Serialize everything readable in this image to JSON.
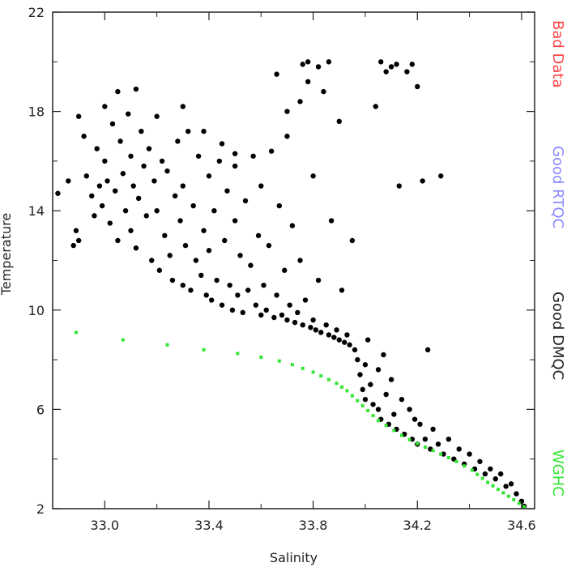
{
  "chart_data": {
    "type": "scatter",
    "xlabel": "Salinity",
    "ylabel": "Temperature",
    "xlim": [
      32.8,
      34.65
    ],
    "ylim": [
      2,
      22
    ],
    "x_ticks": [
      33.0,
      33.4,
      33.8,
      34.2,
      34.6
    ],
    "x_tick_labels": [
      "33.0",
      "33.4",
      "33.8",
      "34.2",
      "34.6"
    ],
    "y_ticks": [
      2,
      6,
      10,
      14,
      18,
      22
    ],
    "y_tick_labels": [
      "2",
      "6",
      "10",
      "14",
      "18",
      "22"
    ],
    "grid": false,
    "legend_placement": "right-vertical",
    "legend": [
      {
        "label": "Bad Data",
        "color": "#ff4444"
      },
      {
        "label": "Good RTQC",
        "color": "#8a8aff"
      },
      {
        "label": "Good DMQC",
        "color": "#222222"
      },
      {
        "label": "WGHC",
        "color": "#33e633"
      }
    ],
    "series": [
      {
        "name": "Good DMQC",
        "color": "#000000",
        "marker": "circle",
        "points": [
          [
            32.82,
            14.7
          ],
          [
            32.86,
            15.2
          ],
          [
            32.88,
            12.6
          ],
          [
            32.89,
            13.2
          ],
          [
            32.9,
            12.8
          ],
          [
            32.9,
            17.8
          ],
          [
            32.92,
            17.0
          ],
          [
            32.93,
            15.4
          ],
          [
            32.95,
            14.6
          ],
          [
            32.96,
            13.8
          ],
          [
            32.97,
            16.5
          ],
          [
            32.98,
            15.0
          ],
          [
            32.99,
            14.2
          ],
          [
            33.0,
            18.2
          ],
          [
            33.0,
            16.0
          ],
          [
            33.01,
            15.2
          ],
          [
            33.02,
            13.5
          ],
          [
            33.03,
            17.5
          ],
          [
            33.04,
            14.8
          ],
          [
            33.05,
            18.8
          ],
          [
            33.05,
            12.8
          ],
          [
            33.06,
            16.8
          ],
          [
            33.07,
            15.5
          ],
          [
            33.08,
            14.0
          ],
          [
            33.09,
            17.9
          ],
          [
            33.1,
            13.2
          ],
          [
            33.1,
            16.2
          ],
          [
            33.11,
            15.0
          ],
          [
            33.12,
            18.9
          ],
          [
            33.12,
            12.5
          ],
          [
            33.13,
            14.5
          ],
          [
            33.14,
            17.2
          ],
          [
            33.15,
            15.8
          ],
          [
            33.16,
            13.8
          ],
          [
            33.17,
            16.5
          ],
          [
            33.18,
            12.0
          ],
          [
            33.19,
            15.2
          ],
          [
            33.2,
            17.8
          ],
          [
            33.2,
            14.0
          ],
          [
            33.21,
            11.6
          ],
          [
            33.22,
            16.0
          ],
          [
            33.23,
            13.0
          ],
          [
            33.24,
            15.6
          ],
          [
            33.25,
            12.2
          ],
          [
            33.26,
            11.2
          ],
          [
            33.27,
            14.6
          ],
          [
            33.28,
            16.8
          ],
          [
            33.29,
            13.6
          ],
          [
            33.3,
            11.0
          ],
          [
            33.3,
            15.0
          ],
          [
            33.31,
            12.6
          ],
          [
            33.32,
            17.2
          ],
          [
            33.33,
            10.8
          ],
          [
            33.34,
            14.2
          ],
          [
            33.35,
            12.0
          ],
          [
            33.36,
            16.2
          ],
          [
            33.37,
            11.4
          ],
          [
            33.38,
            13.2
          ],
          [
            33.39,
            10.6
          ],
          [
            33.4,
            15.4
          ],
          [
            33.4,
            12.4
          ],
          [
            33.41,
            10.4
          ],
          [
            33.42,
            14.0
          ],
          [
            33.43,
            11.2
          ],
          [
            33.44,
            16.0
          ],
          [
            33.45,
            10.2
          ],
          [
            33.46,
            12.8
          ],
          [
            33.47,
            14.8
          ],
          [
            33.48,
            11.0
          ],
          [
            33.49,
            10.0
          ],
          [
            33.5,
            13.6
          ],
          [
            33.5,
            15.8
          ],
          [
            33.51,
            10.6
          ],
          [
            33.52,
            12.2
          ],
          [
            33.53,
            9.9
          ],
          [
            33.54,
            14.4
          ],
          [
            33.55,
            10.8
          ],
          [
            33.56,
            11.8
          ],
          [
            33.57,
            16.2
          ],
          [
            33.58,
            10.2
          ],
          [
            33.59,
            13.0
          ],
          [
            33.6,
            9.8
          ],
          [
            33.6,
            15.0
          ],
          [
            33.61,
            11.0
          ],
          [
            33.62,
            10.0
          ],
          [
            33.63,
            12.6
          ],
          [
            33.64,
            16.4
          ],
          [
            33.65,
            9.7
          ],
          [
            33.66,
            10.6
          ],
          [
            33.67,
            14.2
          ],
          [
            33.68,
            9.8
          ],
          [
            33.69,
            11.6
          ],
          [
            33.7,
            9.6
          ],
          [
            33.7,
            17.0
          ],
          [
            33.71,
            10.2
          ],
          [
            33.72,
            13.4
          ],
          [
            33.73,
            9.5
          ],
          [
            33.74,
            9.9
          ],
          [
            33.75,
            18.4
          ],
          [
            33.75,
            12.0
          ],
          [
            33.76,
            9.4
          ],
          [
            33.77,
            10.4
          ],
          [
            33.78,
            19.2
          ],
          [
            33.79,
            9.3
          ],
          [
            33.8,
            15.4
          ],
          [
            33.8,
            9.6
          ],
          [
            33.81,
            9.2
          ],
          [
            33.82,
            11.2
          ],
          [
            33.83,
            9.1
          ],
          [
            33.84,
            18.8
          ],
          [
            33.85,
            9.4
          ],
          [
            33.86,
            9.0
          ],
          [
            33.87,
            13.6
          ],
          [
            33.88,
            8.9
          ],
          [
            33.89,
            9.2
          ],
          [
            33.9,
            17.6
          ],
          [
            33.9,
            8.8
          ],
          [
            33.91,
            10.8
          ],
          [
            33.92,
            8.7
          ],
          [
            33.93,
            9.0
          ],
          [
            33.94,
            8.6
          ],
          [
            33.95,
            12.8
          ],
          [
            33.96,
            8.4
          ],
          [
            33.97,
            8.0
          ],
          [
            33.98,
            7.4
          ],
          [
            33.99,
            6.8
          ],
          [
            34.0,
            7.8
          ],
          [
            34.0,
            6.4
          ],
          [
            34.01,
            8.8
          ],
          [
            34.02,
            7.0
          ],
          [
            34.03,
            6.2
          ],
          [
            34.04,
            18.2
          ],
          [
            34.05,
            7.6
          ],
          [
            34.05,
            6.0
          ],
          [
            34.06,
            5.6
          ],
          [
            34.07,
            8.2
          ],
          [
            34.08,
            6.6
          ],
          [
            34.09,
            5.4
          ],
          [
            34.1,
            19.8
          ],
          [
            34.1,
            7.2
          ],
          [
            34.11,
            5.8
          ],
          [
            34.12,
            5.2
          ],
          [
            34.13,
            15.0
          ],
          [
            34.14,
            6.4
          ],
          [
            34.15,
            5.0
          ],
          [
            34.16,
            19.6
          ],
          [
            34.17,
            6.0
          ],
          [
            34.18,
            4.8
          ],
          [
            34.19,
            5.6
          ],
          [
            34.2,
            19.0
          ],
          [
            34.2,
            4.6
          ],
          [
            34.21,
            5.4
          ],
          [
            34.22,
            15.2
          ],
          [
            34.23,
            4.8
          ],
          [
            34.24,
            8.4
          ],
          [
            34.25,
            4.4
          ],
          [
            34.26,
            5.2
          ],
          [
            34.28,
            4.6
          ],
          [
            34.29,
            15.4
          ],
          [
            34.3,
            4.2
          ],
          [
            34.32,
            4.8
          ],
          [
            34.34,
            4.0
          ],
          [
            34.36,
            4.4
          ],
          [
            34.38,
            3.8
          ],
          [
            34.4,
            4.2
          ],
          [
            34.42,
            3.6
          ],
          [
            34.44,
            3.9
          ],
          [
            34.46,
            3.4
          ],
          [
            34.48,
            3.6
          ],
          [
            34.5,
            3.2
          ],
          [
            34.52,
            3.4
          ],
          [
            34.54,
            2.9
          ],
          [
            34.56,
            3.0
          ],
          [
            34.58,
            2.6
          ],
          [
            34.6,
            2.3
          ],
          [
            34.61,
            2.1
          ],
          [
            33.76,
            19.9
          ],
          [
            33.78,
            20.0
          ],
          [
            33.82,
            19.8
          ],
          [
            33.86,
            20.0
          ],
          [
            33.66,
            19.5
          ],
          [
            33.7,
            18.0
          ],
          [
            34.06,
            20.0
          ],
          [
            34.08,
            19.6
          ],
          [
            34.12,
            19.9
          ],
          [
            34.18,
            19.9
          ],
          [
            33.38,
            17.2
          ],
          [
            33.45,
            16.7
          ],
          [
            33.5,
            16.3
          ],
          [
            33.3,
            18.2
          ]
        ]
      },
      {
        "name": "WGHC",
        "color": "#33e633",
        "marker": "square",
        "points": [
          [
            32.89,
            9.1
          ],
          [
            33.07,
            8.8
          ],
          [
            33.24,
            8.6
          ],
          [
            33.38,
            8.4
          ],
          [
            33.51,
            8.25
          ],
          [
            33.6,
            8.1
          ],
          [
            33.67,
            7.95
          ],
          [
            33.72,
            7.8
          ],
          [
            33.76,
            7.65
          ],
          [
            33.8,
            7.5
          ],
          [
            33.83,
            7.35
          ],
          [
            33.86,
            7.2
          ],
          [
            33.89,
            7.05
          ],
          [
            33.91,
            6.9
          ],
          [
            33.93,
            6.75
          ],
          [
            33.95,
            6.55
          ],
          [
            33.97,
            6.35
          ],
          [
            33.99,
            6.15
          ],
          [
            34.01,
            5.95
          ],
          [
            34.03,
            5.75
          ],
          [
            34.05,
            5.55
          ],
          [
            34.08,
            5.35
          ],
          [
            34.11,
            5.15
          ],
          [
            34.14,
            4.95
          ],
          [
            34.17,
            4.78
          ],
          [
            34.2,
            4.62
          ],
          [
            34.23,
            4.48
          ],
          [
            34.26,
            4.34
          ],
          [
            34.29,
            4.2
          ],
          [
            34.32,
            4.06
          ],
          [
            34.35,
            3.9
          ],
          [
            34.38,
            3.72
          ],
          [
            34.41,
            3.55
          ],
          [
            34.43,
            3.38
          ],
          [
            34.45,
            3.22
          ],
          [
            34.47,
            3.06
          ],
          [
            34.49,
            2.92
          ],
          [
            34.51,
            2.78
          ],
          [
            34.53,
            2.64
          ],
          [
            34.55,
            2.5
          ],
          [
            34.57,
            2.36
          ],
          [
            34.59,
            2.22
          ],
          [
            34.61,
            2.08
          ]
        ]
      }
    ]
  }
}
